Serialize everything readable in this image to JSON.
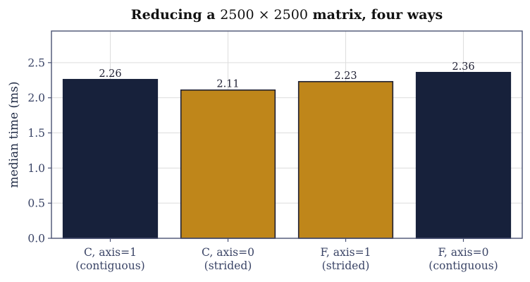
{
  "chart_data": {
    "type": "bar",
    "title_prefix": "Reducing a ",
    "title_math": "2500 × 2500",
    "title_suffix": " matrix, four ways",
    "xlabel": "",
    "ylabel": "median time (ms)",
    "ylim": [
      0,
      2.95
    ],
    "yticks": [
      0.0,
      0.5,
      1.0,
      1.5,
      2.0,
      2.5
    ],
    "ytick_labels": [
      "0.0",
      "0.5",
      "1.0",
      "1.5",
      "2.0",
      "2.5"
    ],
    "grid": true,
    "categories": [
      [
        "C, axis=1",
        "(contiguous)"
      ],
      [
        "C, axis=0",
        "(strided)"
      ],
      [
        "F, axis=1",
        "(strided)"
      ],
      [
        "F, axis=0",
        "(contiguous)"
      ]
    ],
    "values": [
      2.26,
      2.11,
      2.23,
      2.36
    ],
    "value_labels": [
      "2.26",
      "2.11",
      "2.23",
      "2.36"
    ],
    "colors": [
      "#17213b",
      "#bf861a",
      "#bf861a",
      "#17213b"
    ],
    "edge_colors": [
      "#17213b",
      "#1f2033",
      "#1f2033",
      "#17213b"
    ]
  }
}
